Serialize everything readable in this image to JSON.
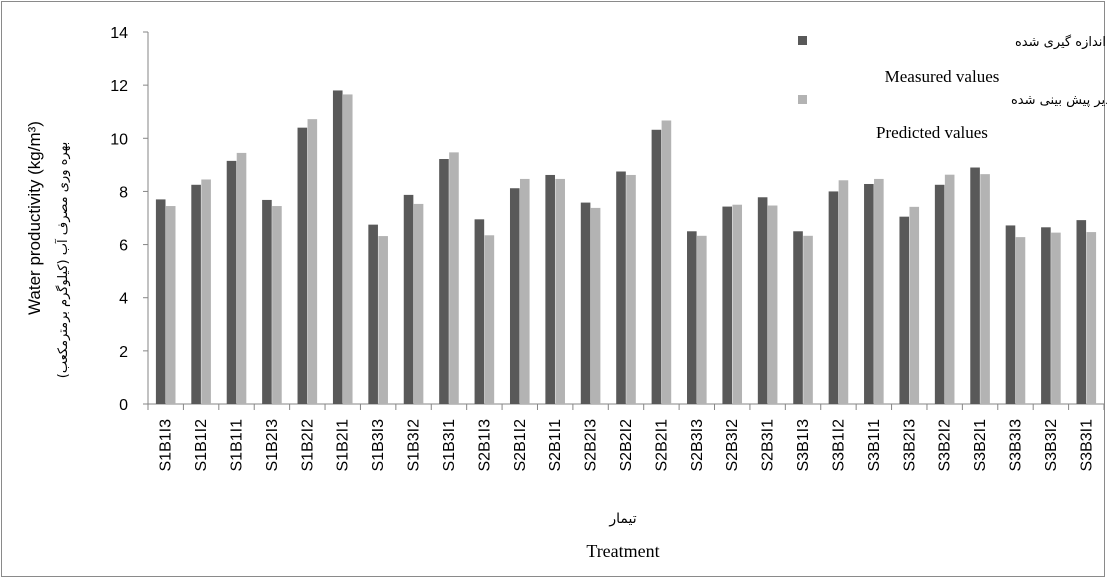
{
  "chart_data": {
    "type": "bar",
    "categories": [
      "S1B1I3",
      "S1B1I2",
      "S1B1I1",
      "S1B2I3",
      "S1B2I2",
      "S1B2I1",
      "S1B3I3",
      "S1B3I2",
      "S1B3I1",
      "S2B1I3",
      "S2B1I2",
      "S2B1I1",
      "S2B2I3",
      "S2B2I2",
      "S2B2I1",
      "S2B3I3",
      "S2B3I2",
      "S2B3I1",
      "S3B1I3",
      "S3B1I2",
      "S3B1I1",
      "S3B2I3",
      "S3B2I2",
      "S3B2I1",
      "S3B3I3",
      "S3B3I2",
      "S3B3I1"
    ],
    "series": [
      {
        "name": "Measured values",
        "name_fa": "مقادیر اندازه گیری شده",
        "color": "#595959",
        "values": [
          7.7,
          8.25,
          9.15,
          7.68,
          10.4,
          11.8,
          6.75,
          7.87,
          9.22,
          6.95,
          8.12,
          8.62,
          7.58,
          8.75,
          10.32,
          6.5,
          7.43,
          7.78,
          6.5,
          8.0,
          8.28,
          7.05,
          8.25,
          8.9,
          6.72,
          6.65,
          6.92
        ]
      },
      {
        "name": "Predicted values",
        "name_fa": "مقادیر پیش بینی شده",
        "color": "#b3b3b3",
        "values": [
          7.45,
          8.45,
          9.45,
          7.45,
          10.72,
          11.65,
          6.32,
          7.53,
          9.47,
          6.35,
          8.47,
          8.47,
          7.38,
          8.62,
          10.67,
          6.33,
          7.5,
          7.47,
          6.33,
          8.42,
          8.47,
          7.42,
          8.63,
          8.65,
          6.28,
          6.45,
          6.47
        ]
      }
    ],
    "yticks": [
      0,
      2,
      4,
      6,
      8,
      10,
      12,
      14
    ],
    "ylim": [
      0,
      14
    ],
    "ylabel": "Water productivity (kg/m³)",
    "ylabel_fa": "بهره وری مصرف آب (کیلوگرم برمترمکعب)",
    "xlabel": "Treatment",
    "xlabel_fa": "تیمار",
    "legend_position": "top-right",
    "grid": false
  }
}
